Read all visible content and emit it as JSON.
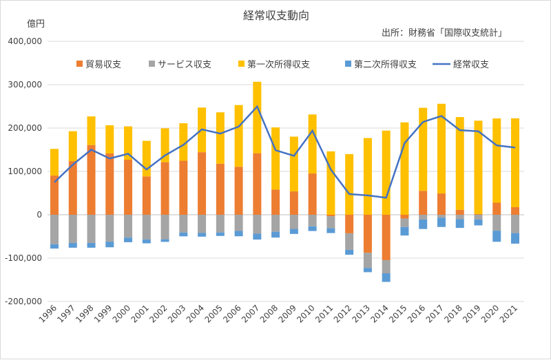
{
  "chart_data": {
    "type": "bar",
    "stacked": true,
    "title": "経常収支動向",
    "unit_label": "億円",
    "source": "出所：財務省「国際収支統計」",
    "ylim": [
      -200000,
      400000
    ],
    "yticks": [
      -200000,
      -100000,
      0,
      100000,
      200000,
      300000,
      400000
    ],
    "ytick_labels": [
      "-200,000",
      "-100,000",
      "0",
      "100,000",
      "200,000",
      "300,000",
      "400,000"
    ],
    "grid": true,
    "legend_position": "top",
    "categories": [
      "1996",
      "1997",
      "1998",
      "1999",
      "2000",
      "2001",
      "2002",
      "2003",
      "2004",
      "2005",
      "2006",
      "2007",
      "2008",
      "2009",
      "2010",
      "2011",
      "2012",
      "2013",
      "2014",
      "2015",
      "2016",
      "2017",
      "2018",
      "2019",
      "2020",
      "2021"
    ],
    "series": [
      {
        "name": "貿易収支",
        "kind": "bar",
        "color": "#ED7D31",
        "values": [
          90346,
          123709,
          160782,
          141370,
          126983,
          88469,
          121211,
          124631,
          144235,
          117712,
          110701,
          141873,
          58031,
          53876,
          95160,
          -3302,
          -42719,
          -87734,
          -104653,
          -8862,
          55176,
          49113,
          11265,
          1503,
          27779,
          17623
        ]
      },
      {
        "name": "サービス収支",
        "kind": "bar",
        "color": "#A5A5A5",
        "values": [
          -67950,
          -65000,
          -65000,
          -62000,
          -52700,
          -56900,
          -56500,
          -41078,
          -42000,
          -40800,
          -37200,
          -43600,
          -39100,
          -32600,
          -26600,
          -27800,
          -38100,
          -34800,
          -30300,
          -19300,
          -11000,
          -6900,
          -10300,
          -10800,
          -36700,
          -42300
        ]
      },
      {
        "name": "第一次所得収支",
        "kind": "bar",
        "color": "#FFC000",
        "values": [
          61544,
          69000,
          66000,
          65000,
          76900,
          82000,
          78100,
          86400,
          103000,
          118500,
          142277,
          164800,
          143400,
          126300,
          136200,
          146200,
          139900,
          176900,
          194100,
          213000,
          191500,
          206800,
          214000,
          215500,
          194400,
          204800
        ]
      },
      {
        "name": "第二次所得収支",
        "kind": "bar",
        "color": "#5B9BD5",
        "values": [
          -9997,
          -11000,
          -11000,
          -13000,
          -10600,
          -9000,
          -6000,
          -8700,
          -8500,
          -8100,
          -12400,
          -13600,
          -13500,
          -11600,
          -10900,
          -11100,
          -11400,
          -9900,
          -19900,
          -19700,
          -21800,
          -21300,
          -20000,
          -13700,
          -25600,
          -24300
        ]
      },
      {
        "name": "経常収支",
        "kind": "line",
        "color": "#4472C4",
        "values": [
          74943,
          115700,
          149981,
          129734,
          140616,
          104524,
          136837,
          161254,
          196941,
          187277,
          203307,
          249490,
          148786,
          135925,
          193828,
          104013,
          47640,
          44566,
          39215,
          165194,
          213910,
          227779,
          195047,
          192513,
          159917,
          154877
        ]
      }
    ]
  }
}
